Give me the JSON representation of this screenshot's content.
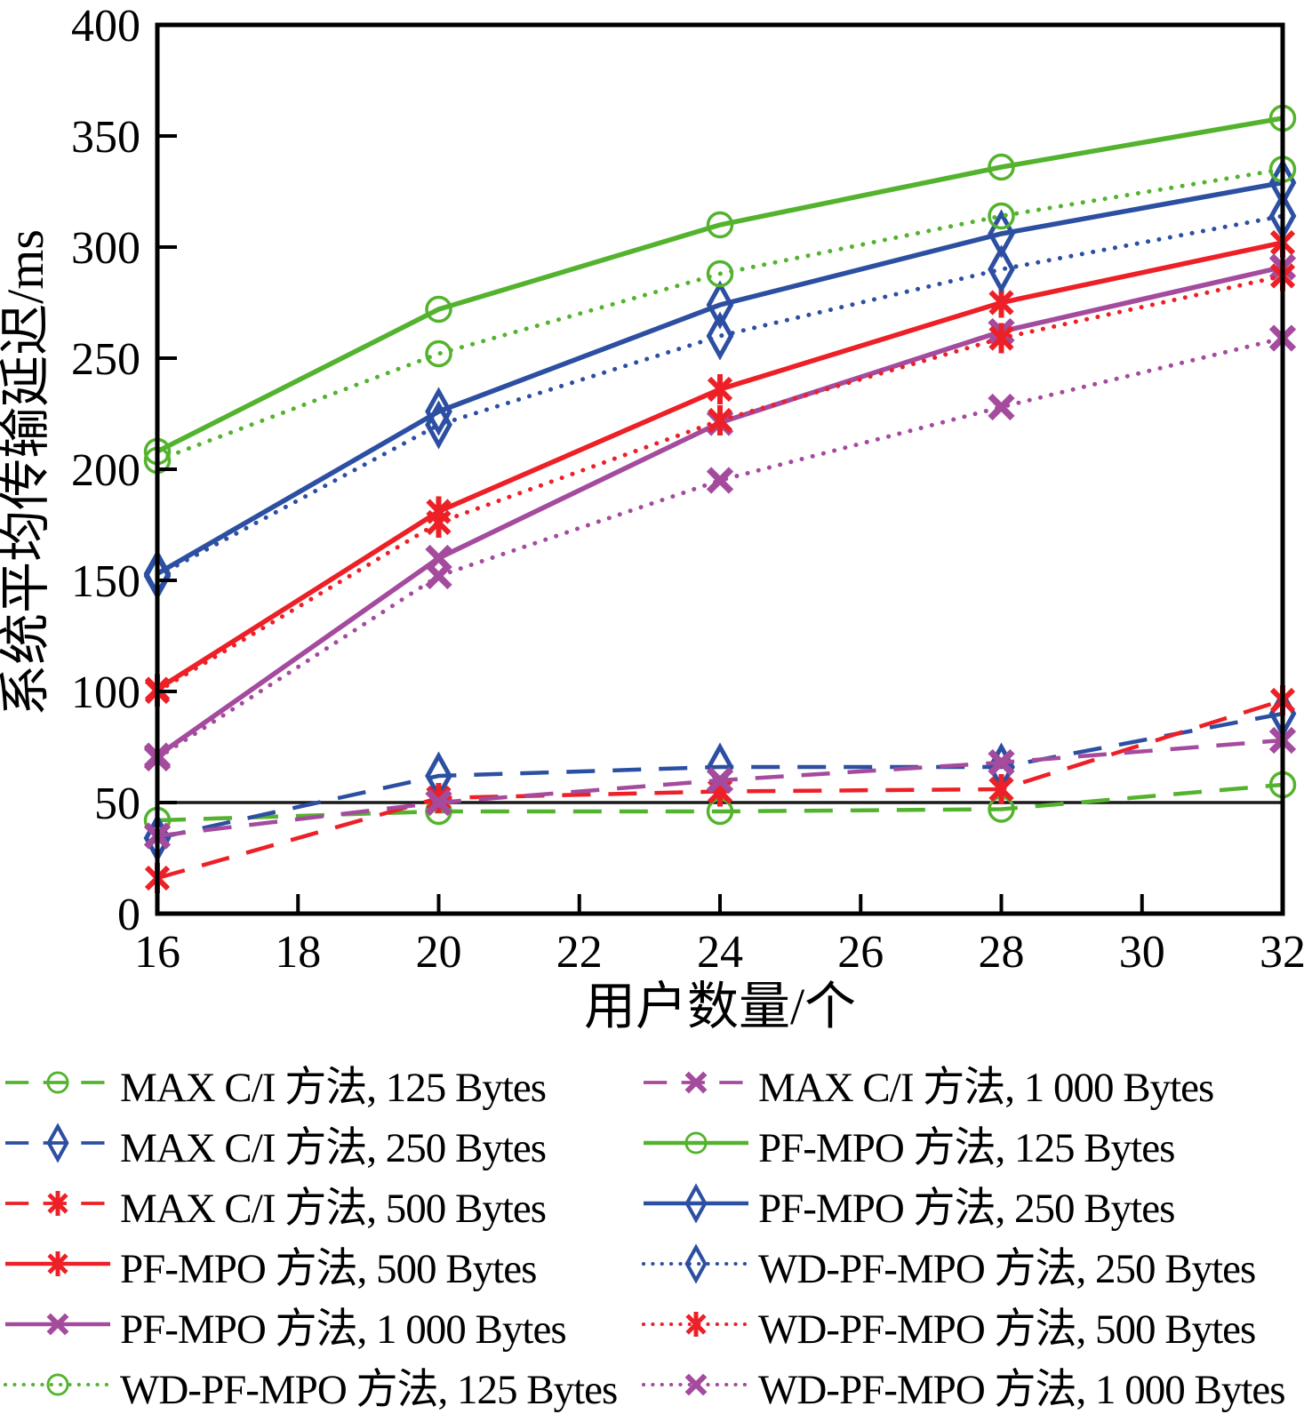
{
  "chart_data": {
    "type": "line",
    "title": "",
    "xlabel": "用户数量/个",
    "ylabel": "系统平均传输延迟/ms",
    "x": [
      16,
      20,
      24,
      28,
      32
    ],
    "xlim": [
      16,
      32
    ],
    "ylim": [
      0,
      400
    ],
    "xticks": [
      16,
      18,
      20,
      22,
      24,
      26,
      28,
      30,
      32
    ],
    "yticks": [
      0,
      50,
      100,
      150,
      200,
      250,
      300,
      350,
      400
    ],
    "grid": "off",
    "reference_line_y": 50,
    "reference_line_color": "#1a1a1a",
    "legend_position": "below-two-columns",
    "series": [
      {
        "name": "MAX C/I 方法, 125 Bytes",
        "color": "#54b32e",
        "style": "dashed",
        "marker": "circle",
        "values": [
          42,
          46,
          46,
          47,
          58
        ]
      },
      {
        "name": "MAX C/I 方法, 250 Bytes",
        "color": "#2d4fa2",
        "style": "dashed",
        "marker": "diamond",
        "values": [
          34,
          62,
          66,
          66,
          90
        ]
      },
      {
        "name": "MAX C/I 方法, 500 Bytes",
        "color": "#ec2026",
        "style": "dashed",
        "marker": "asterisk",
        "values": [
          16,
          52,
          55,
          56,
          96
        ]
      },
      {
        "name": "MAX C/I 方法, 1 000 Bytes",
        "color": "#a44b9e",
        "style": "dashed",
        "marker": "x",
        "values": [
          35,
          50,
          60,
          68,
          78
        ]
      },
      {
        "name": "PF-MPO 方法, 125 Bytes",
        "color": "#54b32e",
        "style": "solid",
        "marker": "circle",
        "values": [
          208,
          272,
          310,
          336,
          358
        ]
      },
      {
        "name": "PF-MPO 方法, 250 Bytes",
        "color": "#2d4fa2",
        "style": "solid",
        "marker": "diamond",
        "values": [
          153,
          226,
          274,
          306,
          329
        ]
      },
      {
        "name": "PF-MPO 方法, 500 Bytes",
        "color": "#ec2026",
        "style": "solid",
        "marker": "asterisk",
        "values": [
          101,
          181,
          236,
          275,
          302
        ]
      },
      {
        "name": "PF-MPO 方法, 1 000 Bytes",
        "color": "#a44b9e",
        "style": "solid",
        "marker": "x",
        "values": [
          71,
          160,
          221,
          262,
          291
        ]
      },
      {
        "name": "WD-PF-MPO 方法, 125 Bytes",
        "color": "#54b32e",
        "style": "dotted",
        "marker": "circle",
        "values": [
          204,
          252,
          288,
          314,
          335
        ]
      },
      {
        "name": "WD-PF-MPO 方法, 250 Bytes",
        "color": "#2d4fa2",
        "style": "dotted",
        "marker": "diamond",
        "values": [
          152,
          220,
          260,
          290,
          314
        ]
      },
      {
        "name": "WD-PF-MPO 方法, 500 Bytes",
        "color": "#ec2026",
        "style": "dotted",
        "marker": "asterisk",
        "values": [
          100,
          176,
          222,
          259,
          287
        ]
      },
      {
        "name": "WD-PF-MPO 方法, 1 000 Bytes",
        "color": "#a44b9e",
        "style": "dotted",
        "marker": "x",
        "values": [
          70,
          152,
          195,
          228,
          259
        ]
      }
    ],
    "legend_order_rows": [
      [
        0,
        3
      ],
      [
        1,
        4
      ],
      [
        2,
        5
      ],
      [
        6,
        9
      ],
      [
        7,
        10
      ],
      [
        8,
        11
      ]
    ]
  }
}
